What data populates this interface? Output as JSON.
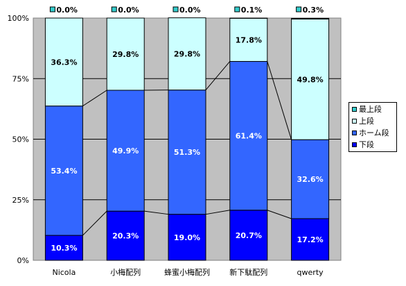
{
  "chart_data": {
    "type": "bar",
    "stacked": true,
    "normalized": true,
    "categories": [
      "Nicola",
      "小梅配列",
      "蜂蜜小梅配列",
      "新下駄配列",
      "qwerty"
    ],
    "ylim": [
      0,
      100
    ],
    "yticks": [
      "0%",
      "25%",
      "50%",
      "75%",
      "100%"
    ],
    "grid": true,
    "legend_position": "right",
    "series": [
      {
        "name": "下段",
        "color": "#0000ff",
        "values": [
          10.3,
          20.3,
          19.0,
          20.7,
          17.2
        ],
        "labels": [
          "10.3%",
          "20.3%",
          "19.0%",
          "20.7%",
          "17.2%"
        ]
      },
      {
        "name": "ホーム段",
        "color": "#3366ff",
        "values": [
          53.4,
          49.9,
          51.3,
          61.4,
          32.6
        ],
        "labels": [
          "53.4%",
          "49.9%",
          "51.3%",
          "61.4%",
          "32.6%"
        ]
      },
      {
        "name": "上段",
        "color": "#ccffff",
        "values": [
          36.3,
          29.8,
          29.8,
          17.8,
          49.8
        ],
        "labels": [
          "36.3%",
          "29.8%",
          "29.8%",
          "17.8%",
          "49.8%"
        ]
      },
      {
        "name": "最上段",
        "color": "#33cccc",
        "values": [
          0.0,
          0.0,
          0.0,
          0.1,
          0.3
        ],
        "labels": [
          "0.0%",
          "0.0%",
          "0.0%",
          "0.1%",
          "0.3%"
        ]
      }
    ],
    "legend_order": [
      "最上段",
      "上段",
      "ホーム段",
      "下段"
    ]
  }
}
